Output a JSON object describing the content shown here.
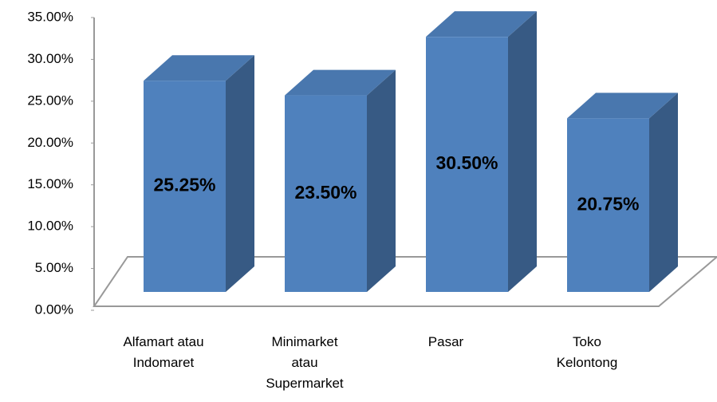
{
  "chart_data": {
    "type": "bar3d",
    "categories": [
      "Alfamart atau Indomaret",
      "Minimarket atau Supermarket",
      "Pasar",
      "Toko Kelontong"
    ],
    "values": [
      25.25,
      23.5,
      30.5,
      20.75
    ],
    "value_labels": [
      "25.25%",
      "23.50%",
      "30.50%",
      "20.75%"
    ],
    "color": "#4f81bd",
    "ylim": [
      0,
      35
    ],
    "yticks": [
      {
        "value": 0,
        "label": "0.00%"
      },
      {
        "value": 5,
        "label": "5.00%"
      },
      {
        "value": 10,
        "label": "10.00%"
      },
      {
        "value": 15,
        "label": "15.00%"
      },
      {
        "value": 20,
        "label": "20.00%"
      },
      {
        "value": 25,
        "label": "25.00%"
      },
      {
        "value": 30,
        "label": "30.00%"
      },
      {
        "value": 35,
        "label": "35.00%"
      }
    ]
  }
}
